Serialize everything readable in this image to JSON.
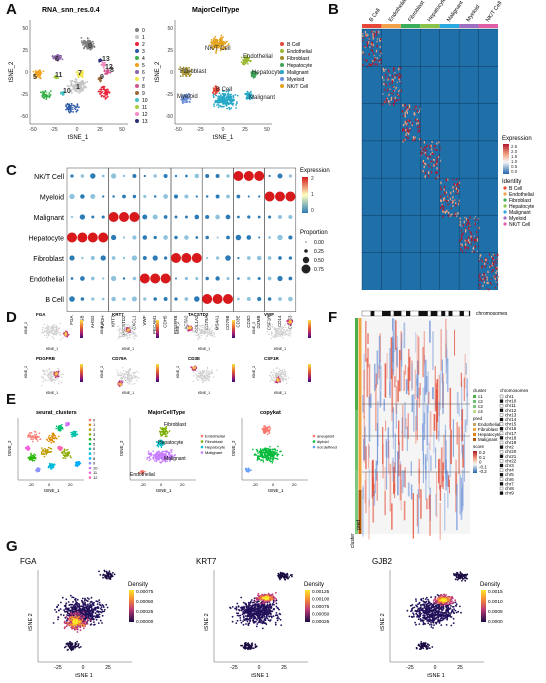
{
  "panel_letters": [
    "A",
    "B",
    "C",
    "D",
    "E",
    "F",
    "G"
  ],
  "A": {
    "left": {
      "title": "RNA_snn_res.0.4",
      "xlabel": "tSNE_1",
      "ylabel": "tSNE_2",
      "xticks": [
        "-50",
        "-25",
        "0",
        "25",
        "50"
      ],
      "yticks": [
        "50",
        "25",
        "0",
        "-25",
        "-50"
      ],
      "cluster_labels": [
        "0",
        "1",
        "2",
        "3",
        "4",
        "5",
        "6",
        "7",
        "8",
        "9",
        "10",
        "11",
        "12",
        "13"
      ],
      "legend": [
        "0",
        "1",
        "2",
        "3",
        "4",
        "5",
        "6",
        "7",
        "8",
        "9",
        "10",
        "11",
        "12",
        "13"
      ]
    },
    "right": {
      "title": "MajorCellType",
      "xlabel": "tSNE_1",
      "ylabel": "tSNE_2",
      "xticks": [
        "-50",
        "-25",
        "0",
        "25",
        "50"
      ],
      "yticks": [
        "50",
        "25",
        "0",
        "-25",
        "-50"
      ],
      "cluster_labels": [
        "NK/T Cell",
        "Endothelial",
        "Fibroblast",
        "Hepatocyte",
        "Myeloid",
        "Malignant",
        "B Cell"
      ],
      "legend": [
        "B Cell",
        "Endothelial",
        "Fibroblast",
        "Hepatocyte",
        "Malignant",
        "Myeloid",
        "NK/T Cell"
      ]
    }
  },
  "B": {
    "columns": [
      "B Cell",
      "Endothelial",
      "Fibroblast",
      "Hepatocyte",
      "Malignant",
      "Myeloid",
      "NK/T Cell"
    ],
    "column_colors": [
      "#e8483a",
      "#f3a14a",
      "#3cae5a",
      "#8bc34a",
      "#28a9e0",
      "#9d6fc0",
      "#e05ea6"
    ],
    "legend_expression_title": "Expression",
    "legend_expression_ticks": [
      "2.5",
      "2.0",
      "1.5",
      "1.0",
      "0.5",
      "0.0"
    ],
    "legend_identity_title": "Identity",
    "legend_identity": [
      "B Cell",
      "Endothelial",
      "Fibroblast",
      "Hepatocyte",
      "Malignant",
      "Myeloid",
      "NK/T Cell"
    ]
  },
  "C": {
    "rows": [
      "NK/T Cell",
      "Myeloid",
      "Malignant",
      "Hepatocyte",
      "Fibroblast",
      "Endothelial",
      "B Cell"
    ],
    "genes": [
      [
        "FGA",
        "FGB",
        "AHSG",
        "APOH"
      ],
      [
        "KRT7",
        "TACSTD2",
        "CXCL1"
      ],
      [
        "VWF",
        "PECAM1",
        "CDH5"
      ],
      [
        "PDGFRB",
        "ACTA2",
        "COL1A2"
      ],
      [
        "CD79A",
        "MS4A1",
        "CD79B"
      ],
      [
        "CD3E",
        "CD3D",
        "GZMB"
      ],
      [
        "CSF1R",
        "CD14",
        "CD163"
      ]
    ],
    "legend_expression_title": "Expression",
    "legend_expression_ticks": [
      "2",
      "1",
      "0"
    ],
    "legend_proportion_title": "Proportion",
    "legend_proportion_values": [
      "0.00",
      "0.25",
      "0.50",
      "0.75"
    ]
  },
  "D": {
    "genes": [
      "FGA",
      "KRT7",
      "TACSTD2",
      "VWF",
      "PDGFRB",
      "CD79A",
      "CD3E",
      "CSF1R"
    ],
    "xlabel": "tSNE_1",
    "ylabel": "tSNE_2"
  },
  "E": {
    "plots": [
      {
        "title": "seurat_clusters",
        "legend": [
          "0",
          "1",
          "2",
          "3",
          "4",
          "5",
          "6",
          "7",
          "8",
          "9",
          "10",
          "11",
          "12"
        ]
      },
      {
        "title": "MajorCellType",
        "legend": [
          "Endothelial",
          "Fibroblast",
          "Hepatocyte",
          "Malignant"
        ],
        "cluster_labels": [
          "Fibroblast",
          "Hepatocyte",
          "Malignant",
          "Endothelial"
        ]
      },
      {
        "title": "copykat",
        "legend": [
          "aneuploid",
          "diploid",
          "not.defined"
        ]
      }
    ],
    "xlabel": "tSNE_1",
    "ylabel": "tSNE_2",
    "xticks": [
      "-20",
      "0",
      "20"
    ]
  },
  "F": {
    "top_label": "chromosomes",
    "legend_cluster_title": "cluster",
    "legend_cluster": [
      "c1",
      "c2",
      "c3",
      "c4"
    ],
    "legend_pred_title": "pred",
    "legend_pred": [
      "Endothelial",
      "Fibroblast",
      "Hepatocyte",
      "Malignant"
    ],
    "legend_score_title": "score",
    "legend_score_ticks": [
      "0.2",
      "0.1",
      "0",
      "-0.1",
      "-0.2"
    ],
    "legend_chromosomes_title": "chromosomes",
    "legend_chromosomes": [
      "chr1",
      "chr10",
      "chr11",
      "chr12",
      "chr13",
      "chr14",
      "chr15",
      "chr16",
      "chr17",
      "chr18",
      "chr19",
      "chr2",
      "chr20",
      "chr21",
      "chr22",
      "chr3",
      "chr4",
      "chr5",
      "chr6",
      "chr7",
      "chr8",
      "chr9"
    ],
    "side_labels": [
      "cluster",
      "pred"
    ]
  },
  "G": {
    "plots": [
      {
        "title": "FGA",
        "legend_title": "Density",
        "legend_ticks": [
          "0.00075",
          "0.00050",
          "0.00025",
          "0.00000"
        ]
      },
      {
        "title": "KRT7",
        "legend_title": "Density",
        "legend_ticks": [
          "0.00125",
          "0.00100",
          "0.00075",
          "0.00050",
          "0.00025"
        ]
      },
      {
        "title": "GJB2",
        "legend_title": "Density",
        "legend_ticks": [
          "0.0015",
          "0.0010",
          "0.0005",
          "0.0000"
        ]
      }
    ],
    "xlabel": "tSNE 1",
    "ylabel": "tSNE 2",
    "xticks": [
      "-25",
      "0",
      "25"
    ]
  }
}
